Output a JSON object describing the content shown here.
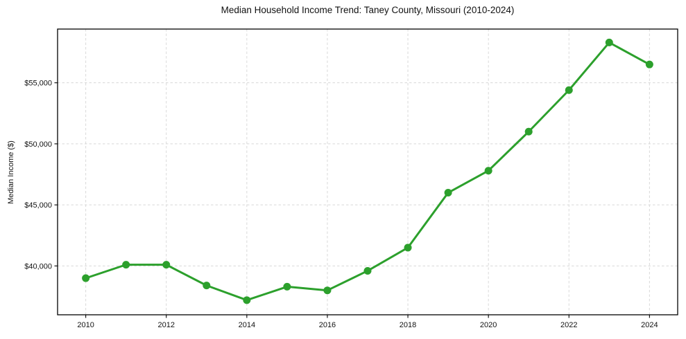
{
  "chart_data": {
    "type": "line",
    "title": "Median Household Income Trend: Taney County, Missouri (2010-2024)",
    "xlabel": "",
    "ylabel": "Median Income ($)",
    "series_name": "Median Household Income",
    "x": [
      2010,
      2011,
      2012,
      2013,
      2014,
      2015,
      2016,
      2017,
      2018,
      2019,
      2020,
      2021,
      2022,
      2023,
      2024
    ],
    "values": [
      39000,
      40100,
      40100,
      38400,
      37200,
      38300,
      38000,
      39600,
      41500,
      46000,
      47800,
      51000,
      54400,
      58300,
      56500
    ],
    "x_ticks": [
      2010,
      2012,
      2014,
      2016,
      2018,
      2020,
      2022,
      2024
    ],
    "x_tick_labels": [
      "2010",
      "2012",
      "2014",
      "2016",
      "2018",
      "2020",
      "2022",
      "2024"
    ],
    "y_ticks": [
      {
        "value": 40000,
        "label": "$40,000"
      },
      {
        "value": 45000,
        "label": "$45,000"
      },
      {
        "value": 50000,
        "label": "$50,000"
      },
      {
        "value": 55000,
        "label": "$55,000"
      }
    ],
    "xlim": [
      2009.3,
      2024.7
    ],
    "ylim": [
      36000,
      59400
    ],
    "grid": true,
    "grid_style": "dashed",
    "legend_position": "none",
    "marker": "circle"
  },
  "style": {
    "line_color": "#2ca02c",
    "marker_color": "#2ca02c",
    "grid_color": "#d8d8d8",
    "spine_color": "#000000",
    "text_color": "#111111",
    "background_color": "#ffffff"
  }
}
